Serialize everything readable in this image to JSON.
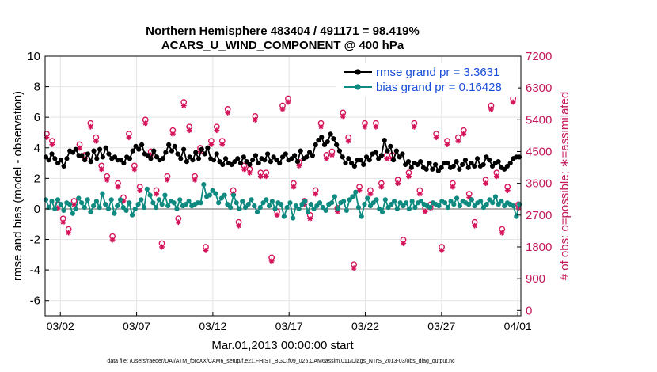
{
  "chart_data": {
    "type": "line",
    "title_line1": "Northern Hemisphere 483404 / 491171 = 98.419%",
    "title_line2": "ACARS_U_WIND_COMPONENT @ 400 hPa",
    "ylabel_left": "rmse and bias (model - observation)",
    "ylabel_right": "# of obs: o=possible; ∗=assimilated",
    "xlabel": "Mar.01,2013 00:00:00 start",
    "footnote": "data file: /Users/raeder/DAI/ATM_forcXX/CAM6_setup/f.e21.FHIST_BGC.f09_025.CAM6assim.011/Diags_NTrS_2013-03/obs_diag_output.nc",
    "ylim_left": [
      -7,
      10
    ],
    "yticks_left": [
      "10",
      "8",
      "6",
      "4",
      "2",
      "0",
      "-2",
      "-4",
      "-6"
    ],
    "ylim_right": [
      -150,
      7200
    ],
    "yticks_right": [
      "7200",
      "6300",
      "5400",
      "4500",
      "3600",
      "2700",
      "1800",
      "900",
      "0"
    ],
    "xlim_days": [
      0,
      31.2
    ],
    "xticks": [
      {
        "label": "03/02",
        "day": 1
      },
      {
        "label": "03/07",
        "day": 6
      },
      {
        "label": "03/12",
        "day": 11
      },
      {
        "label": "03/17",
        "day": 16
      },
      {
        "label": "03/22",
        "day": 21
      },
      {
        "label": "03/27",
        "day": 26
      },
      {
        "label": "04/01",
        "day": 31
      }
    ],
    "legend": [
      {
        "label": "rmse grand pr = 3.3631",
        "color": "#000000"
      },
      {
        "label": "bias grand pr = 0.16428",
        "color": "#0f8a80"
      }
    ],
    "colors": {
      "rmse": "#000000",
      "bias": "#0f8a80",
      "obs": "#d4145a",
      "zero_line": "#b0b0b0",
      "grid": "#e4e4e4"
    },
    "rmse": [
      3.4,
      3.2,
      3.6,
      3.3,
      3.0,
      3.2,
      2.8,
      3.3,
      3.8,
      3.7,
      3.9,
      3.5,
      3.5,
      3.2,
      3.6,
      3.1,
      3.8,
      3.3,
      3.9,
      3.4,
      4.0,
      3.6,
      3.3,
      3.4,
      3.2,
      3.2,
      3.0,
      3.4,
      3.3,
      3.8,
      4.1,
      3.9,
      4.2,
      3.6,
      3.5,
      3.3,
      3.8,
      3.4,
      3.2,
      3.3,
      3.7,
      4.2,
      3.8,
      4.1,
      3.6,
      3.3,
      3.9,
      3.1,
      3.4,
      3.2,
      3.7,
      3.3,
      3.9,
      3.6,
      4.0,
      3.3,
      3.2,
      3.6,
      3.1,
      2.9,
      3.3,
      3.0,
      2.9,
      3.1,
      3.3,
      3.0,
      3.4,
      3.1,
      2.9,
      3.2,
      3.5,
      3.0,
      3.3,
      3.2,
      3.6,
      3.1,
      3.4,
      3.2,
      3.0,
      3.4,
      3.6,
      3.2,
      3.3,
      3.5,
      3.1,
      3.8,
      3.3,
      3.4,
      3.7,
      3.5,
      4.2,
      4.5,
      4.7,
      4.2,
      4.4,
      4.9,
      4.6,
      4.2,
      3.8,
      3.4,
      3.0,
      3.3,
      3.0,
      2.8,
      3.2,
      3.2,
      2.9,
      3.4,
      3.2,
      3.6,
      3.7,
      3.3,
      3.5,
      4.5,
      3.8,
      4.1,
      3.2,
      3.8,
      3.4,
      3.6,
      2.9,
      3.1,
      2.7,
      3.0,
      2.9,
      3.1,
      2.7,
      2.6,
      3.0,
      2.6,
      2.9,
      2.5,
      2.7,
      3.0,
      3.0,
      2.7,
      2.8,
      3.1,
      2.6,
      2.9,
      3.2,
      2.7,
      3.0,
      2.8,
      3.3,
      2.8,
      2.9,
      3.4,
      3.2,
      2.8,
      3.0,
      3.1,
      2.7,
      2.6,
      2.8,
      3.0,
      3.3,
      3.4,
      3.4
    ],
    "bias": [
      0.6,
      0.1,
      0.5,
      0.0,
      0.6,
      0.3,
      -0.1,
      0.4,
      0.3,
      -0.3,
      0.0,
      0.7,
      0.4,
      0.1,
      0.6,
      -0.2,
      0.2,
      0.5,
      0.1,
      1.0,
      0.3,
      0.0,
      0.6,
      -0.3,
      0.2,
      0.6,
      0.1,
      -0.1,
      0.4,
      -0.4,
      0.0,
      0.3,
      0.6,
      0.1,
      1.3,
      0.9,
      0.4,
      0.1,
      0.6,
      0.3,
      0.9,
      0.2,
      0.5,
      0.4,
      0.0,
      0.6,
      0.2,
      0.3,
      0.5,
      0.2,
      0.3,
      0.4,
      0.4,
      1.6,
      0.8,
      0.9,
      1.2,
      1.0,
      0.4,
      0.7,
      0.9,
      0.3,
      0.1,
      0.9,
      0.4,
      0.0,
      0.5,
      0.1,
      0.3,
      0.6,
      0.2,
      -0.2,
      0.1,
      0.4,
      0.6,
      0.2,
      0.5,
      0.0,
      0.4,
      0.3,
      -0.5,
      0.1,
      0.4,
      -0.6,
      0.2,
      0.0,
      0.3,
      0.5,
      -0.2,
      0.3,
      0.0,
      0.2,
      0.4,
      0.1,
      -0.1,
      0.3,
      0.4,
      0.8,
      0.0,
      0.4,
      0.5,
      -0.1,
      0.6,
      0.8,
      1.1,
      0.1,
      -0.5,
      0.3,
      0.7,
      0.2,
      0.4,
      0.6,
      0.0,
      -0.2,
      0.6,
      0.1,
      0.3,
      0.5,
      0.0,
      0.4,
      0.2,
      0.4,
      0.0,
      0.5,
      0.1,
      0.4,
      0.5,
      0.3,
      0.2,
      0.1,
      0.4,
      0.3,
      0.2,
      0.5,
      0.4,
      0.1,
      0.5,
      0.3,
      0.7,
      0.2,
      0.5,
      0.4,
      0.3,
      0.6,
      0.2,
      0.4,
      0.5,
      0.1,
      0.3,
      0.6,
      0.4,
      0.8,
      0.3,
      0.5,
      0.2,
      0.4,
      0.3,
      0.2,
      -0.5,
      0.3
    ],
    "obs_possible": [
      5000,
      4800,
      3000,
      2600,
      2300,
      3100,
      4700,
      4400,
      5300,
      4900,
      4100,
      3800,
      2100,
      3600,
      3200,
      5000,
      4100,
      3500,
      5400,
      4500,
      3400,
      1900,
      3800,
      5100,
      2600,
      5900,
      5200,
      3800,
      4600,
      1800,
      4800,
      5200,
      4800,
      5700,
      3400,
      2500,
      4100,
      4000,
      5500,
      3900,
      3900,
      1500,
      2800,
      5800,
      6000,
      3600,
      4200,
      3100,
      2700,
      3400,
      5300,
      4400,
      4500,
      2900,
      5600,
      4900,
      1300,
      3500,
      5300,
      3400,
      5300,
      3600,
      4400,
      4400,
      3700,
      2000,
      3900,
      5300,
      3400,
      2900,
      3000,
      5000,
      1800,
      4800,
      3600,
      4900,
      5100,
      3300,
      2500,
      6300,
      3700,
      5800,
      3900,
      2300,
      3500,
      6000,
      3000
    ],
    "obs_assimilated": [
      4900,
      4700,
      2900,
      2500,
      2200,
      3000,
      4600,
      4300,
      5200,
      4800,
      4000,
      3700,
      2000,
      3500,
      3100,
      4900,
      4000,
      3400,
      5300,
      4400,
      3300,
      1800,
      3700,
      5000,
      2500,
      5800,
      5100,
      3700,
      4500,
      1700,
      4700,
      5100,
      4700,
      5600,
      3300,
      2400,
      4000,
      3900,
      5400,
      3800,
      3800,
      1400,
      2700,
      5700,
      5900,
      3500,
      4100,
      3000,
      2600,
      3300,
      5200,
      4300,
      4400,
      2800,
      5500,
      4800,
      1200,
      3400,
      5200,
      3300,
      5200,
      3500,
      4300,
      4300,
      3600,
      1900,
      3800,
      5200,
      3300,
      2800,
      2900,
      4900,
      1700,
      4700,
      3500,
      4800,
      5000,
      3200,
      2400,
      6200,
      3600,
      5700,
      3800,
      2200,
      3400,
      5900,
      2900
    ]
  }
}
